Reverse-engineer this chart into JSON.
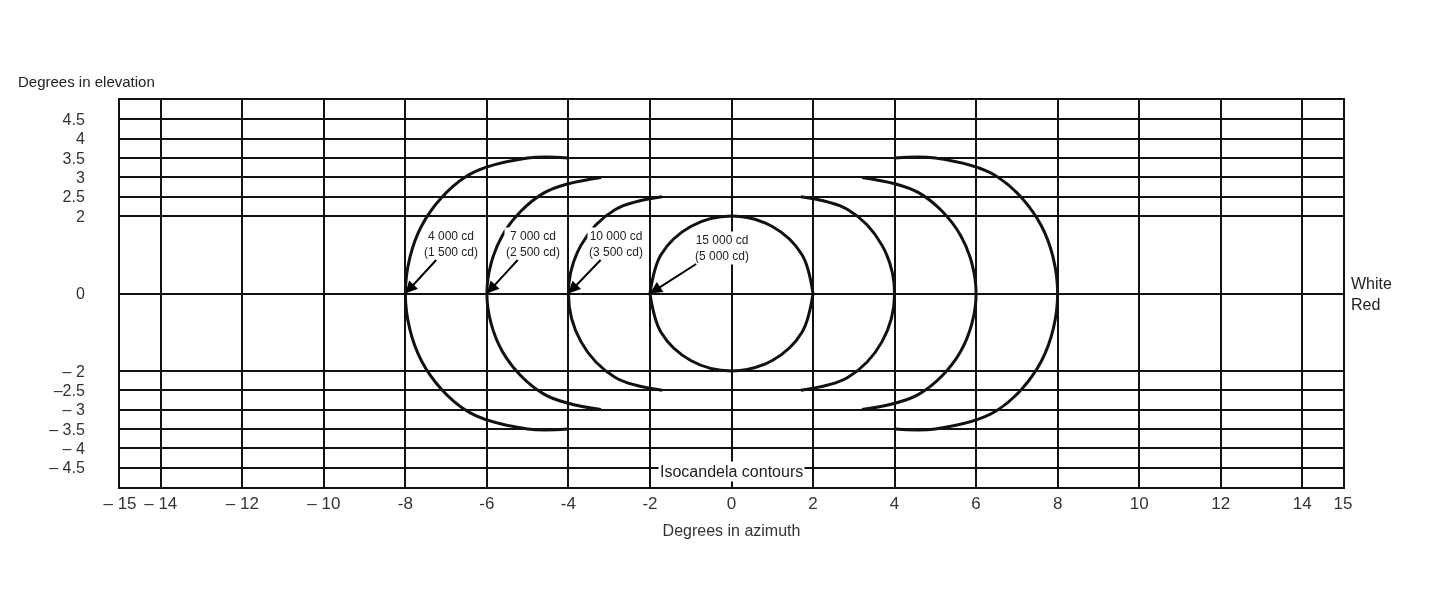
{
  "chart_data": {
    "type": "line",
    "xlabel": "Degrees in azimuth",
    "ylabel": "Degrees in elevation",
    "xlim": [
      -15,
      15
    ],
    "xticks": [
      {
        "value": -15,
        "label": "– 15"
      },
      {
        "value": -14,
        "label": "– 14"
      },
      {
        "value": -12,
        "label": "– 12"
      },
      {
        "value": -10,
        "label": "– 10"
      },
      -8,
      -6,
      -4,
      -2,
      0,
      2,
      4,
      6,
      8,
      10,
      12,
      14,
      15
    ],
    "ylim": [
      -5,
      5
    ],
    "yticks": [
      {
        "value": -4.5,
        "label": "– 4.5"
      },
      {
        "value": -4,
        "label": "– 4"
      },
      {
        "value": -3.5,
        "label": "– 3.5"
      },
      {
        "value": -3,
        "label": "– 3"
      },
      {
        "value": -2.5,
        "label": "–2.5"
      },
      {
        "value": -2,
        "label": "– 2"
      },
      0,
      2,
      2.5,
      3,
      3.5,
      4,
      4.5
    ],
    "grid": true,
    "marker": "none",
    "line_style": "solid",
    "series": [
      {
        "color": "#111111",
        "x": [
          -4,
          -5,
          -6.5,
          -7.6,
          -8,
          -7.6,
          -6.5,
          -5,
          -4,
          null,
          4,
          5,
          6.5,
          7.6,
          8,
          7.6,
          6.5,
          5,
          4
        ],
        "values": [
          3.5,
          3.5,
          3.03,
          1.75,
          0,
          -1.75,
          -3.03,
          -3.5,
          -3.5,
          null,
          3.5,
          3.5,
          3.03,
          1.75,
          0,
          -1.75,
          -3.03,
          -3.5,
          -3.5
        ]
      },
      {
        "color": "#111111",
        "x": [
          -3.2,
          -4.6,
          -5.62,
          -6,
          -5.62,
          -4.6,
          -3.2,
          null,
          3.2,
          4.6,
          5.62,
          6,
          5.62,
          4.6,
          3.2
        ],
        "values": [
          3,
          2.6,
          1.5,
          0,
          -1.5,
          -2.6,
          -3,
          null,
          3,
          2.6,
          1.5,
          0,
          -1.5,
          -2.6,
          -3
        ]
      },
      {
        "color": "#111111",
        "x": [
          -1.7,
          -2.85,
          -3.69,
          -4,
          -3.69,
          -2.85,
          -1.7,
          null,
          1.7,
          2.85,
          3.69,
          4,
          3.69,
          2.85,
          1.7
        ],
        "values": [
          2.5,
          2.17,
          1.25,
          0,
          -1.25,
          -2.17,
          -2.5,
          null,
          2.5,
          2.17,
          1.25,
          0,
          -1.25,
          -2.17,
          -2.5
        ]
      },
      {
        "color": "#111111",
        "x": [
          2,
          1.73,
          1,
          0,
          -1,
          -1.73,
          -2,
          null,
          -2,
          -1.73,
          -1,
          0,
          1,
          1.73,
          2
        ],
        "values": [
          0,
          1,
          1.73,
          2,
          1.73,
          1,
          0,
          null,
          0,
          -1,
          -1.73,
          -2,
          -1.73,
          -1,
          0
        ]
      }
    ],
    "annotations": [
      {
        "text": "4 000 cd\n(1 500 cd)",
        "x": -8,
        "y": 0
      },
      {
        "text": "7 000 cd\n(2 500 cd)",
        "x": -6,
        "y": 0
      },
      {
        "text": "10 000 cd\n(3 500 cd)",
        "x": -4,
        "y": 0
      },
      {
        "text": "15 000 cd\n(5 000 cd)",
        "x": -2,
        "y": 0
      },
      "Isocandela contours",
      "White",
      "Red"
    ]
  }
}
